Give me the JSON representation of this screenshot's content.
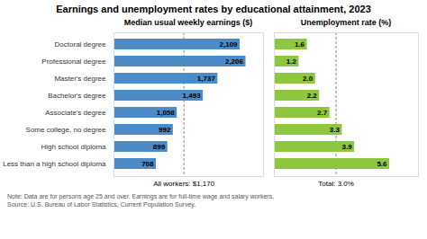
{
  "chart_data": [
    {
      "type": "bar",
      "orientation": "horizontal",
      "title": "Earnings and unemployment rates by educational attainment, 2023",
      "subtitle": "Median usual weekly earnings ($)",
      "categories": [
        "Doctoral degree",
        "Professional degree",
        "Master's degree",
        "Bachelor's degree",
        "Associate's degree",
        "Some college, no degree",
        "High school diploma",
        "Less than a high school diploma"
      ],
      "values": [
        2109,
        2206,
        1737,
        1493,
        1058,
        992,
        899,
        708
      ],
      "value_labels": [
        "2,109",
        "2,206",
        "1,737",
        "1,493",
        "1,058",
        "992",
        "899",
        "708"
      ],
      "data_labels": true,
      "color": "#4b8bc8",
      "xlim": [
        0,
        2500
      ],
      "xticks": [],
      "tick_labels": "y",
      "grid": false,
      "annotations": [
        {
          "x": 1170,
          "label": "All workers: $1,170",
          "line_style": "dashed"
        }
      ],
      "notes": [
        "Note: Data are for persons age 25 and over. Earnings are for full-time wage and salary workers.",
        "Source: U.S. Bureau of Labor Statistics, Current Population Survey."
      ]
    },
    {
      "type": "bar",
      "orientation": "horizontal",
      "subtitle": "Unemployment rate (%)",
      "categories": [
        "Doctoral degree",
        "Professional degree",
        "Master's degree",
        "Bachelor's degree",
        "Associate's degree",
        "Some college, no degree",
        "High school diploma",
        "Less than a high school diploma"
      ],
      "values": [
        1.6,
        1.2,
        2.0,
        2.2,
        2.7,
        3.3,
        3.9,
        5.6
      ],
      "value_labels": [
        "1.6",
        "1.2",
        "2.0",
        "2.2",
        "2.7",
        "3.3",
        "3.9",
        "5.6"
      ],
      "data_labels": true,
      "color": "#8dc63f",
      "xlim": [
        0,
        7
      ],
      "xticks": [],
      "tick_labels": false,
      "grid": false,
      "annotations": [
        {
          "x": 3.0,
          "label": "Total: 3.0%",
          "line_style": "dashed"
        }
      ]
    }
  ]
}
